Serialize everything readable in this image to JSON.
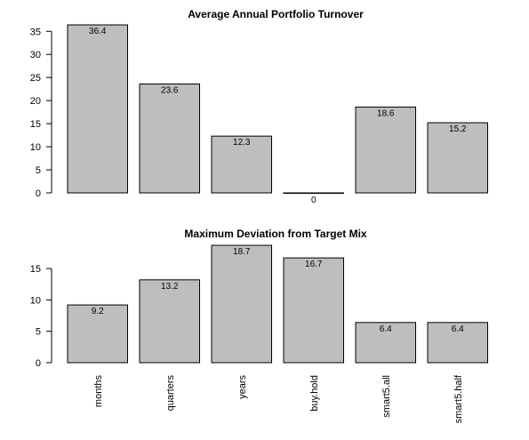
{
  "chart_data": [
    {
      "type": "bar",
      "title": "Average Annual Portfolio Turnover",
      "categories": [
        "months",
        "quarters",
        "years",
        "buy.hold",
        "smart5.all",
        "smart5.half"
      ],
      "values": [
        36.4,
        23.6,
        12.3,
        0,
        18.6,
        15.2
      ],
      "data_labels": [
        "36.4",
        "23.6",
        "12.3",
        "0",
        "18.6",
        "15.2"
      ],
      "yticks": [
        0,
        5,
        10,
        15,
        20,
        25,
        30,
        35
      ],
      "ylim": [
        0,
        36.4
      ],
      "show_category_labels": false,
      "grid": false,
      "bar_color": "#bebebe"
    },
    {
      "type": "bar",
      "title": "Maximum Deviation from Target Mix",
      "categories": [
        "months",
        "quarters",
        "years",
        "buy.hold",
        "smart5.all",
        "smart5.half"
      ],
      "values": [
        9.2,
        13.2,
        18.7,
        16.7,
        6.4,
        6.4
      ],
      "data_labels": [
        "9.2",
        "13.2",
        "18.7",
        "16.7",
        "6.4",
        "6.4"
      ],
      "yticks": [
        0,
        5,
        10,
        15
      ],
      "ylim": [
        0,
        18.7
      ],
      "show_category_labels": true,
      "grid": false,
      "bar_color": "#bebebe"
    }
  ]
}
